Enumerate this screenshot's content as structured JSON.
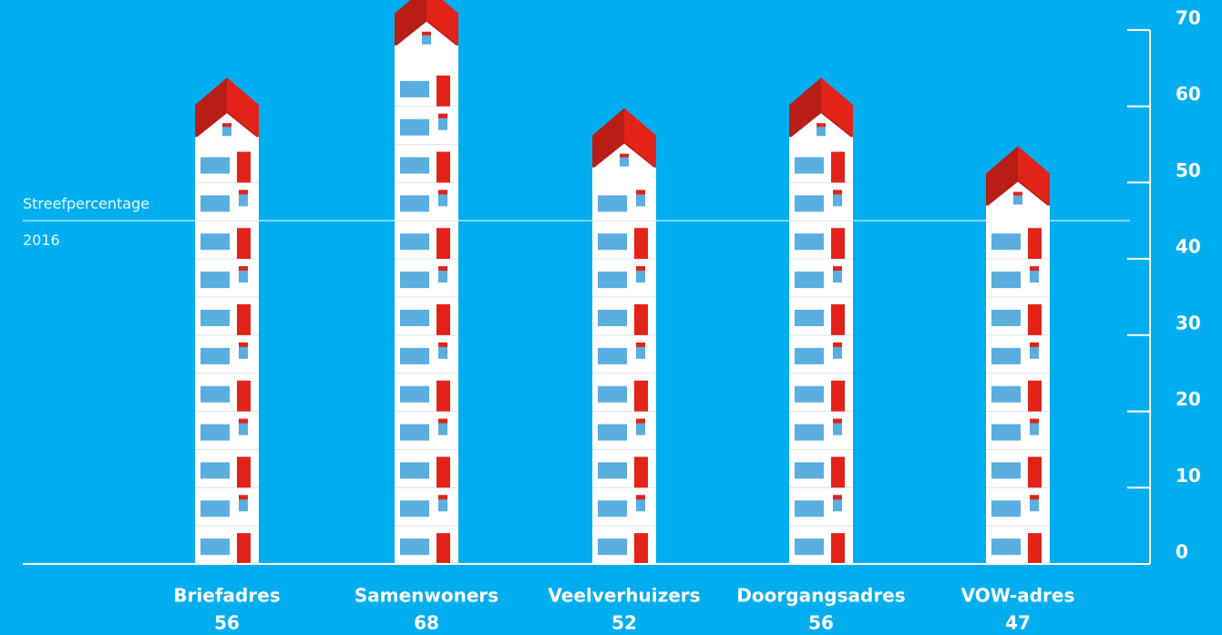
{
  "chart_data": {
    "type": "pictogram-bar",
    "categories": [
      "Briefadres",
      "Samenwoners",
      "Veelverhuizers",
      "Doorgangsadres",
      "VOW-adres"
    ],
    "values": [
      56,
      68,
      52,
      56,
      47
    ],
    "color": "#ffffff",
    "roof_color": "#e2231a",
    "ylim": [
      0,
      70
    ],
    "yticks": [
      0,
      10,
      20,
      30,
      40,
      50,
      60,
      70
    ],
    "reference_line": {
      "value": 45,
      "label": [
        "Streefpercentage",
        "2016"
      ]
    }
  }
}
